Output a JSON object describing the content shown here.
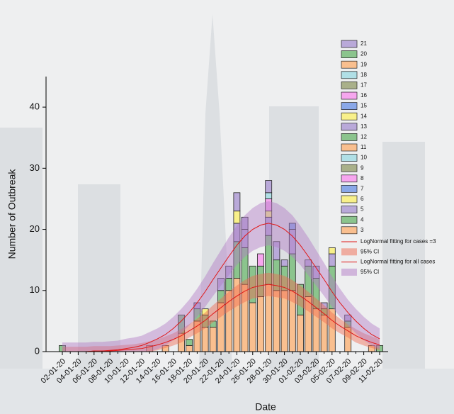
{
  "chart_data": {
    "type": "bar",
    "stacked": true,
    "x_label": "Date",
    "y_label": "Number of Outbreak",
    "categories": [
      "02-01-20",
      null,
      "04-01-20",
      null,
      "06-01-20",
      null,
      "08-01-20",
      null,
      "10-01-20",
      null,
      "12-01-20",
      null,
      "14-01-20",
      null,
      "16-01-20",
      null,
      "18-01-20",
      null,
      "20-01-20",
      null,
      "22-01-20",
      null,
      "24-01-20",
      null,
      "26-01-20",
      null,
      "28-01-20",
      null,
      "30-01-20",
      null,
      "01-02-20",
      null,
      "03-02-20",
      null,
      "05-02-20",
      null,
      "07-02-20",
      null,
      "09-02-20",
      null,
      "11-02-20"
    ],
    "ylim": [
      0,
      45
    ],
    "yticks": [
      0,
      10,
      20,
      30,
      40
    ],
    "series": [
      {
        "name": "3",
        "color": "#f9bf8f",
        "values": [
          0,
          0,
          0,
          0,
          0,
          0,
          0,
          0,
          0,
          0,
          0,
          1,
          0,
          1,
          0,
          3,
          1,
          5,
          4,
          4,
          8,
          10,
          12,
          11,
          8,
          9,
          11,
          10,
          10,
          10,
          6,
          9,
          7,
          6,
          7,
          0,
          4,
          0,
          0,
          1,
          0
        ]
      },
      {
        "name": "4",
        "color": "#8bc48d",
        "values": [
          1,
          0,
          0,
          0,
          0,
          0,
          0,
          0,
          0,
          0,
          0,
          0,
          0,
          0,
          0,
          3,
          1,
          2,
          2,
          1,
          2,
          2,
          6,
          6,
          6,
          5,
          8,
          5,
          4,
          6,
          5,
          5,
          5,
          1,
          7,
          0,
          1,
          0,
          0,
          0,
          1
        ]
      },
      {
        "name": "5",
        "color": "#b9a9d9",
        "values": [
          0,
          0,
          0,
          0,
          0,
          0,
          0,
          0,
          0,
          0,
          0,
          0,
          0,
          0,
          0,
          0,
          0,
          1,
          0,
          0,
          2,
          2,
          3,
          3,
          0,
          0,
          3,
          3,
          1,
          4,
          0,
          1,
          2,
          1,
          2,
          0,
          1,
          0,
          0,
          0,
          0
        ]
      },
      {
        "name": "6",
        "color": "#f8f08a",
        "values": [
          0,
          0,
          0,
          0,
          0,
          0,
          0,
          0,
          0,
          0,
          0,
          0,
          0,
          0,
          0,
          0,
          0,
          0,
          1,
          0,
          0,
          0,
          2,
          0,
          0,
          0,
          1,
          0,
          0,
          0,
          0,
          0,
          0,
          0,
          1,
          0,
          0,
          0,
          0,
          0,
          0
        ]
      },
      {
        "name": "7",
        "color": "#8aa8e8",
        "values": [
          0,
          0,
          0,
          0,
          0,
          0,
          0,
          0,
          0,
          0,
          0,
          0,
          0,
          0,
          0,
          0,
          0,
          0,
          0,
          0,
          0,
          0,
          0,
          0,
          0,
          0,
          0,
          0,
          0,
          1,
          0,
          0,
          0,
          0,
          0,
          0,
          0,
          0,
          0,
          0,
          0
        ]
      },
      {
        "name": "8",
        "color": "#f6a6ee",
        "values": [
          0,
          0,
          0,
          0,
          0,
          0,
          0,
          0,
          0,
          0,
          0,
          0,
          0,
          0,
          0,
          0,
          0,
          0,
          0,
          0,
          0,
          0,
          0,
          0,
          0,
          2,
          2,
          0,
          0,
          0,
          0,
          0,
          0,
          0,
          0,
          0,
          0,
          0,
          0,
          0,
          0
        ]
      },
      {
        "name": "9",
        "color": "#a9b08a",
        "values": [
          0,
          0,
          0,
          0,
          0,
          0,
          0,
          0,
          0,
          0,
          0,
          0,
          0,
          0,
          0,
          0,
          0,
          0,
          0,
          0,
          0,
          0,
          0,
          0,
          0,
          0,
          0,
          0,
          0,
          0,
          0,
          0,
          0,
          0,
          0,
          0,
          0,
          0,
          0,
          0,
          0
        ]
      },
      {
        "name": "10",
        "color": "#b0dfe6",
        "values": [
          0,
          0,
          0,
          0,
          0,
          0,
          0,
          0,
          0,
          0,
          0,
          0,
          0,
          0,
          0,
          0,
          0,
          0,
          0,
          0,
          0,
          0,
          0,
          0,
          0,
          0,
          1,
          0,
          0,
          0,
          0,
          0,
          0,
          0,
          0,
          0,
          0,
          0,
          0,
          0,
          0
        ]
      },
      {
        "name": "11",
        "color": "#f9bf8f",
        "values": [
          0,
          0,
          0,
          0,
          0,
          0,
          0,
          0,
          0,
          0,
          0,
          0,
          0,
          0,
          0,
          0,
          0,
          0,
          0,
          0,
          0,
          0,
          0,
          0,
          0,
          0,
          0,
          0,
          0,
          0,
          0,
          0,
          0,
          0,
          0,
          0,
          0,
          0,
          0,
          0,
          0
        ]
      },
      {
        "name": "12",
        "color": "#8bc48d",
        "values": [
          0,
          0,
          0,
          0,
          0,
          0,
          0,
          0,
          0,
          0,
          0,
          0,
          0,
          0,
          0,
          0,
          0,
          0,
          0,
          0,
          0,
          0,
          0,
          0,
          0,
          0,
          0,
          0,
          0,
          0,
          0,
          0,
          0,
          0,
          0,
          0,
          0,
          0,
          0,
          0,
          0
        ]
      },
      {
        "name": "13",
        "color": "#b9a9d9",
        "values": [
          0,
          0,
          0,
          0,
          0,
          0,
          0,
          0,
          0,
          0,
          0,
          0,
          0,
          0,
          0,
          0,
          0,
          0,
          0,
          0,
          0,
          0,
          3,
          2,
          0,
          0,
          2,
          0,
          0,
          0,
          0,
          0,
          0,
          0,
          0,
          0,
          0,
          0,
          0,
          0,
          0
        ]
      },
      {
        "name": "14",
        "color": "#f8f08a",
        "values": [
          0,
          0,
          0,
          0,
          0,
          0,
          0,
          0,
          0,
          0,
          0,
          0,
          0,
          0,
          0,
          0,
          0,
          0,
          0,
          0,
          0,
          0,
          0,
          0,
          0,
          0,
          0,
          0,
          0,
          0,
          0,
          0,
          0,
          0,
          0,
          0,
          0,
          0,
          0,
          0,
          0
        ]
      },
      {
        "name": "15",
        "color": "#8aa8e8",
        "values": [
          0,
          0,
          0,
          0,
          0,
          0,
          0,
          0,
          0,
          0,
          0,
          0,
          0,
          0,
          0,
          0,
          0,
          0,
          0,
          0,
          0,
          0,
          0,
          0,
          0,
          0,
          0,
          0,
          0,
          0,
          0,
          0,
          0,
          0,
          0,
          0,
          0,
          0,
          0,
          0,
          0
        ]
      },
      {
        "name": "16",
        "color": "#f6a6ee",
        "values": [
          0,
          0,
          0,
          0,
          0,
          0,
          0,
          0,
          0,
          0,
          0,
          0,
          0,
          0,
          0,
          0,
          0,
          0,
          0,
          0,
          0,
          0,
          0,
          0,
          0,
          0,
          0,
          0,
          0,
          0,
          0,
          0,
          0,
          0,
          0,
          0,
          0,
          0,
          0,
          0,
          0
        ]
      },
      {
        "name": "17",
        "color": "#a9b08a",
        "values": [
          0,
          0,
          0,
          0,
          0,
          0,
          0,
          0,
          0,
          0,
          0,
          0,
          0,
          0,
          0,
          0,
          0,
          0,
          0,
          0,
          0,
          0,
          0,
          0,
          0,
          0,
          0,
          0,
          0,
          0,
          0,
          0,
          0,
          0,
          0,
          0,
          0,
          0,
          0,
          0,
          0
        ]
      },
      {
        "name": "18",
        "color": "#b0dfe6",
        "values": [
          0,
          0,
          0,
          0,
          0,
          0,
          0,
          0,
          0,
          0,
          0,
          0,
          0,
          0,
          0,
          0,
          0,
          0,
          0,
          0,
          0,
          0,
          0,
          0,
          0,
          0,
          0,
          0,
          0,
          0,
          0,
          0,
          0,
          0,
          0,
          0,
          0,
          0,
          0,
          0,
          0
        ]
      },
      {
        "name": "19",
        "color": "#f9bf8f",
        "values": [
          0,
          0,
          0,
          0,
          0,
          0,
          0,
          0,
          0,
          0,
          0,
          0,
          0,
          0,
          0,
          0,
          0,
          0,
          0,
          0,
          0,
          0,
          0,
          0,
          0,
          0,
          0,
          0,
          0,
          0,
          0,
          0,
          0,
          0,
          0,
          0,
          0,
          0,
          0,
          0,
          0
        ]
      },
      {
        "name": "20",
        "color": "#8bc48d",
        "values": [
          0,
          0,
          0,
          0,
          0,
          0,
          0,
          0,
          0,
          0,
          0,
          0,
          0,
          0,
          0,
          0,
          0,
          0,
          0,
          0,
          0,
          0,
          0,
          0,
          0,
          0,
          0,
          0,
          0,
          0,
          0,
          0,
          0,
          0,
          0,
          0,
          0,
          0,
          0,
          0,
          0
        ]
      },
      {
        "name": "21",
        "color": "#b9a9d9",
        "values": [
          0,
          0,
          0,
          0,
          0,
          0,
          0,
          0,
          0,
          0,
          0,
          0,
          0,
          0,
          0,
          0,
          0,
          0,
          0,
          0,
          0,
          0,
          0,
          0,
          0,
          0,
          0,
          0,
          0,
          0,
          0,
          0,
          0,
          0,
          0,
          0,
          0,
          0,
          0,
          0,
          0
        ]
      }
    ],
    "fits": [
      {
        "name": "LogNormal fitting for cases =3",
        "color": "#e01818",
        "values": [
          0,
          0,
          0,
          0,
          0.1,
          0.1,
          0.1,
          0.2,
          0.3,
          0.4,
          0.5,
          0.8,
          1.1,
          1.5,
          2.0,
          2.6,
          3.4,
          4.2,
          5.1,
          6.2,
          7.2,
          8.2,
          9.1,
          9.9,
          10.5,
          10.8,
          11.0,
          10.8,
          10.5,
          9.9,
          9.1,
          8.2,
          7.2,
          6.2,
          5.1,
          4.2,
          3.4,
          2.6,
          2.0,
          1.5,
          1.1
        ],
        "ci_name": "95% CI",
        "ci_color": "#f06a50",
        "ci_lower": [
          0,
          0,
          0,
          0,
          0,
          0,
          0,
          0,
          0,
          0,
          0,
          0,
          0.2,
          0.6,
          1.0,
          1.5,
          2.3,
          3.0,
          3.8,
          4.8,
          5.7,
          6.6,
          7.4,
          8.1,
          8.7,
          8.9,
          9.1,
          8.9,
          8.7,
          8.1,
          7.4,
          6.6,
          5.7,
          4.8,
          3.8,
          3.0,
          2.3,
          1.5,
          1.0,
          0.6,
          0.2
        ],
        "ci_upper": [
          0.8,
          0.8,
          0.8,
          0.8,
          0.9,
          0.9,
          0.9,
          1.0,
          1.1,
          1.2,
          1.4,
          1.7,
          2.0,
          2.5,
          3.0,
          3.7,
          4.5,
          5.4,
          6.4,
          7.6,
          8.7,
          9.8,
          10.8,
          11.7,
          12.4,
          12.7,
          12.9,
          12.7,
          12.4,
          11.7,
          10.8,
          9.8,
          8.7,
          7.6,
          6.4,
          5.4,
          4.5,
          3.7,
          3.0,
          2.5,
          2.0
        ]
      },
      {
        "name": "LogNormal fitting for all cases",
        "color": "#e01818",
        "values": [
          0,
          0,
          0,
          0,
          0.1,
          0.1,
          0.2,
          0.3,
          0.5,
          0.7,
          1.0,
          1.5,
          2.1,
          2.8,
          3.8,
          5.0,
          6.4,
          8.0,
          9.8,
          11.8,
          13.7,
          15.6,
          17.4,
          18.9,
          20.0,
          20.7,
          21.0,
          20.7,
          20.0,
          18.9,
          17.4,
          15.6,
          13.7,
          11.8,
          9.8,
          8.0,
          6.4,
          5.0,
          3.8,
          2.8,
          2.1
        ],
        "ci_name": "95% CI",
        "ci_color": "#b27cc6",
        "ci_lower": [
          0,
          0,
          0,
          0,
          0,
          0,
          0,
          0,
          0,
          0,
          0,
          0,
          0.4,
          1.0,
          1.9,
          3.0,
          4.3,
          5.7,
          7.3,
          9.1,
          10.8,
          12.5,
          14.2,
          15.5,
          16.5,
          17.1,
          17.4,
          17.1,
          16.5,
          15.5,
          14.2,
          12.5,
          10.8,
          9.1,
          7.3,
          5.7,
          4.3,
          3.0,
          1.9,
          1.0,
          0.4
        ],
        "ci_upper": [
          1.5,
          1.5,
          1.5,
          1.5,
          1.6,
          1.6,
          1.7,
          1.8,
          2.1,
          2.3,
          2.6,
          3.2,
          3.8,
          4.6,
          5.7,
          7.0,
          8.5,
          10.3,
          12.3,
          14.5,
          16.6,
          18.7,
          20.6,
          22.3,
          23.5,
          24.3,
          24.6,
          24.3,
          23.5,
          22.3,
          20.6,
          18.7,
          16.6,
          14.5,
          12.3,
          10.3,
          8.5,
          7.0,
          5.7,
          4.6,
          3.8
        ]
      }
    ]
  }
}
